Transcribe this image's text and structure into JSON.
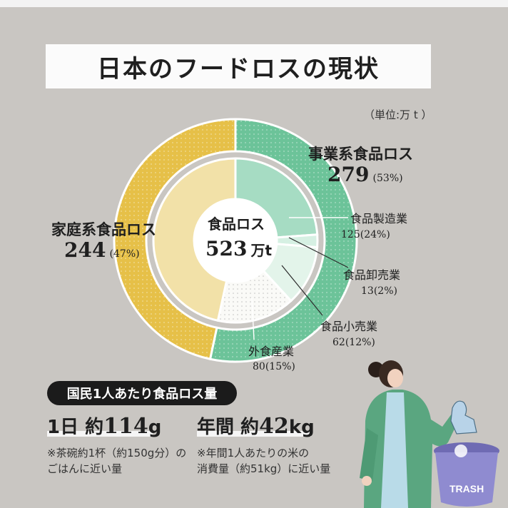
{
  "title": "日本のフードロスの現状",
  "unit_note": "（単位:万 t ）",
  "center": {
    "label": "食品ロス",
    "value": "523",
    "unit": "万t"
  },
  "chart_data": {
    "type": "pie",
    "total": 523,
    "outer": [
      {
        "label": "事業系食品ロス",
        "value": 279,
        "value_text": "279",
        "pct_text": "(53%)",
        "color": "#6cc399",
        "pattern": "dots"
      },
      {
        "label": "家庭系食品ロス",
        "value": 244,
        "value_text": "244",
        "pct_text": "(47%)",
        "color": "#e6c048",
        "pattern": "dots"
      }
    ],
    "inner": [
      {
        "label": "食品製造業",
        "value": 125,
        "value_text": "125",
        "pct_text": "(24%)",
        "color": "#a6dcc3"
      },
      {
        "label": "食品卸売業",
        "value": 13,
        "value_text": "13",
        "pct_text": "(2%)",
        "color": "#d6f0e3"
      },
      {
        "label": "食品小売業",
        "value": 62,
        "value_text": "62",
        "pct_text": "(12%)",
        "color": "#e3f4ea"
      },
      {
        "label": "外食産業",
        "value": 80,
        "value_text": "80",
        "pct_text": "(15%)",
        "color": "#f7f7f4"
      },
      {
        "label": "家庭系食品ロス",
        "value": 244,
        "value_text": "",
        "pct_text": "",
        "color": "#f2e1a8"
      }
    ]
  },
  "per_person": {
    "pill": "国民1人あたり食品ロス量",
    "day_prefix": "1日 約",
    "day_value": "114",
    "day_unit": "g",
    "day_note_1": "※茶碗約1杯（約150g分）の",
    "day_note_2": "ごはんに近い量",
    "year_prefix": "年間 約",
    "year_value": "42",
    "year_unit": "kg",
    "year_note_1": "※年間1人あたりの米の",
    "year_note_2": "消費量（約51kg）に近い量"
  },
  "illustration": {
    "bin_text": "TRASH"
  }
}
